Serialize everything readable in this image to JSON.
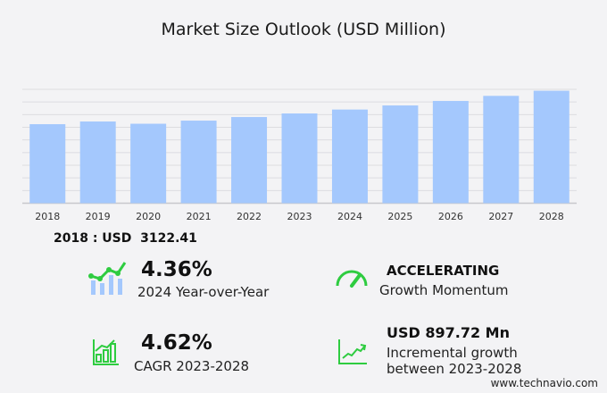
{
  "chart_data": {
    "type": "bar",
    "title": "Market Size Outlook (USD Million)",
    "categories": [
      "2018",
      "2019",
      "2020",
      "2021",
      "2022",
      "2023",
      "2024",
      "2025",
      "2026",
      "2027",
      "2028"
    ],
    "values": [
      3122.41,
      3228,
      3140,
      3263,
      3405,
      3546,
      3701,
      3863,
      4040,
      4241,
      4444
    ],
    "ylim": [
      0,
      4500
    ],
    "grid": true,
    "bar_color": "#a4c8fd"
  },
  "base_label": "2018 : USD  3122.41",
  "kpis": {
    "yoy": {
      "value": "4.36%",
      "label": "2024 Year-over-Year"
    },
    "momentum": {
      "value": "ACCELERATING",
      "label": "Growth Momentum"
    },
    "cagr": {
      "value": "4.62%",
      "label": "CAGR 2023-2028"
    },
    "incremental": {
      "value": "USD 897.72 Mn",
      "label1": "Incremental growth",
      "label2": "between 2023-2028"
    }
  },
  "accent_color": "#2ecc40",
  "website": "www.technavio.com"
}
